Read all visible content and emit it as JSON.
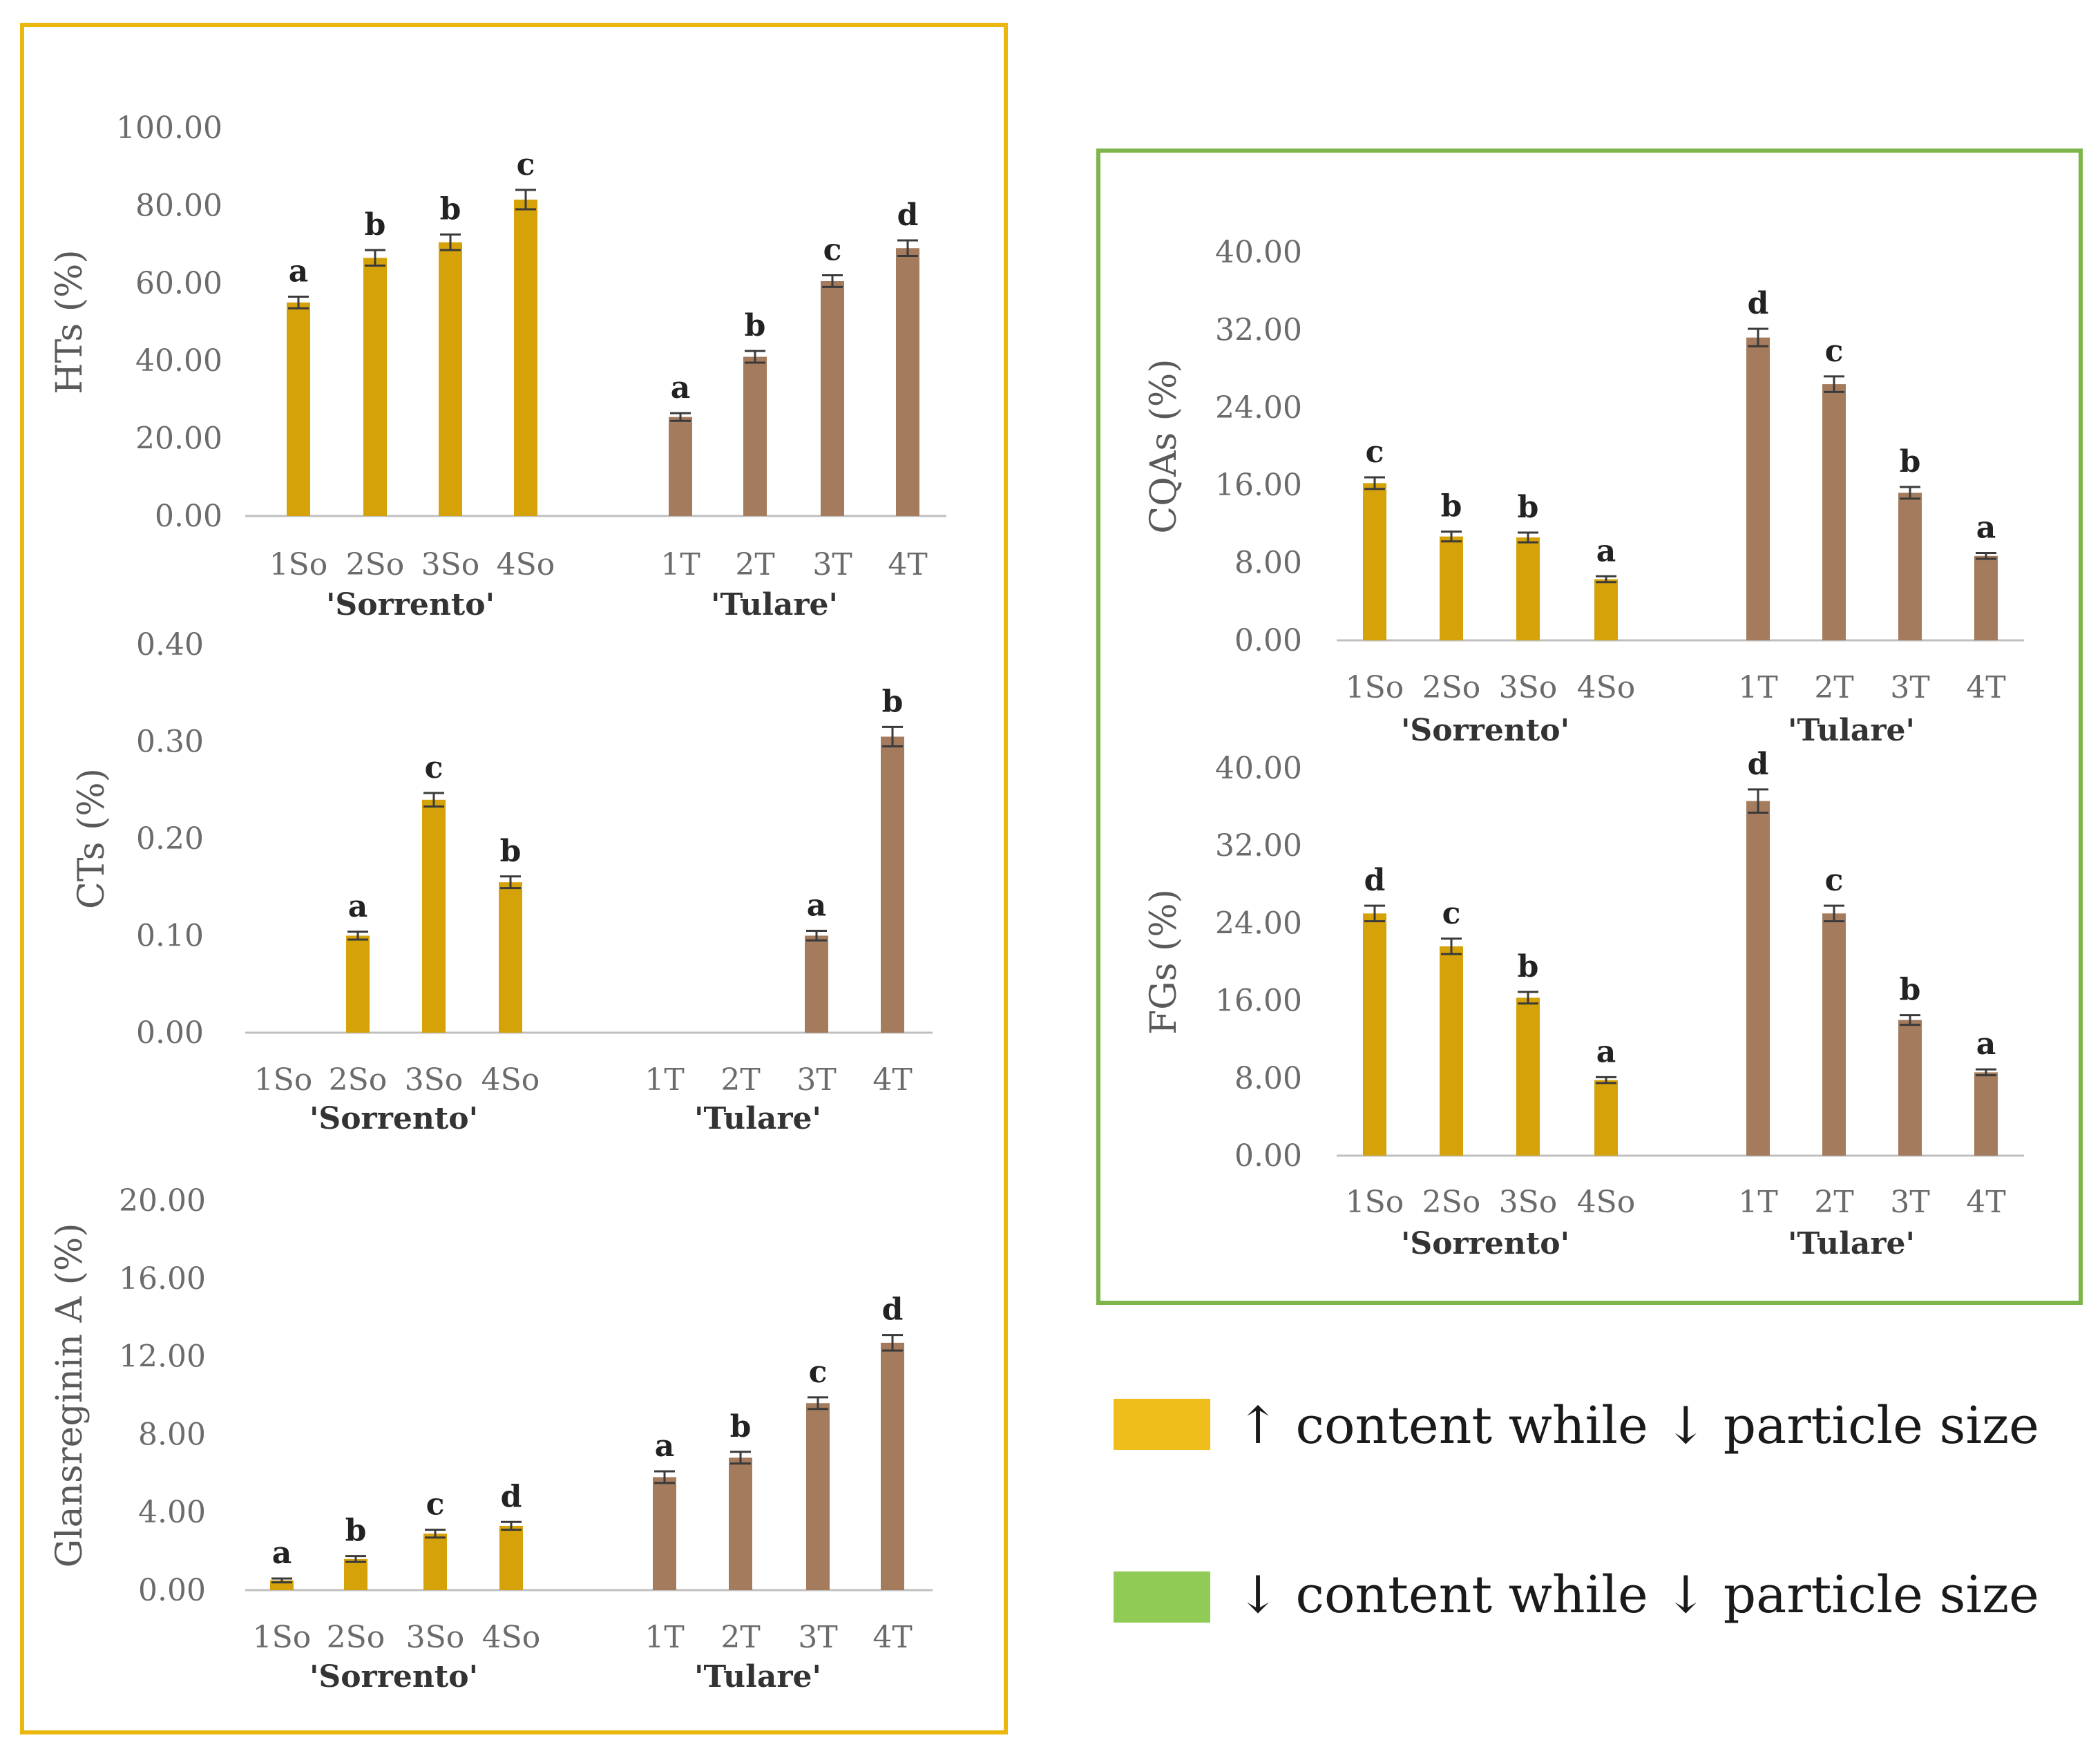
{
  "colors": {
    "sorrento": "#D5A20A",
    "tulare": "#A47B5C",
    "errbar": "#3a3a3a",
    "axis": "#bfbfbf",
    "frame_increase": "#E9B70E",
    "frame_decrease": "#7DB54A",
    "legend_increase": "#F0BE1A",
    "legend_decrease": "#8FCB55"
  },
  "legend": {
    "increase": "↑ content while ↓ particle size",
    "decrease": "↓ content while ↓ particle size"
  },
  "chart_data": [
    {
      "id": "hts",
      "type": "bar",
      "frame": "increase",
      "ylabel": "HTs (%)",
      "yticks": [
        "0.00",
        "20.00",
        "40.00",
        "60.00",
        "80.00",
        "100.00"
      ],
      "ylim": [
        0,
        100
      ],
      "groups": [
        "'Sorrento'",
        "'Tulare'"
      ],
      "categories": [
        "1So",
        "2So",
        "3So",
        "4So",
        "1T",
        "2T",
        "3T",
        "4T"
      ],
      "values": [
        55,
        66.5,
        70.5,
        81.5,
        25.5,
        41,
        60.5,
        69
      ],
      "errors": [
        1.5,
        2,
        2,
        2.5,
        1,
        1.5,
        1.5,
        2
      ],
      "letters": [
        "a",
        "b",
        "b",
        "c",
        "a",
        "b",
        "c",
        "d"
      ]
    },
    {
      "id": "cts",
      "type": "bar",
      "frame": "increase",
      "ylabel": "CTs (%)",
      "yticks": [
        "0.00",
        "0.10",
        "0.20",
        "0.30",
        "0.40"
      ],
      "ylim": [
        0,
        0.4
      ],
      "groups": [
        "'Sorrento'",
        "'Tulare'"
      ],
      "categories": [
        "1So",
        "2So",
        "3So",
        "4So",
        "1T",
        "2T",
        "3T",
        "4T"
      ],
      "values": [
        0,
        0.1,
        0.24,
        0.155,
        0,
        0,
        0.1,
        0.305
      ],
      "errors": [
        0,
        0.004,
        0.007,
        0.006,
        0,
        0,
        0.005,
        0.01
      ],
      "letters": [
        "",
        "a",
        "c",
        "b",
        "",
        "",
        "a",
        "b"
      ]
    },
    {
      "id": "glans",
      "type": "bar",
      "frame": "increase",
      "ylabel": "Glansreginin A (%)",
      "yticks": [
        "0.00",
        "4.00",
        "8.00",
        "12.00",
        "16.00",
        "20.00"
      ],
      "ylim": [
        0,
        20
      ],
      "groups": [
        "'Sorrento'",
        "'Tulare'"
      ],
      "categories": [
        "1So",
        "2So",
        "3So",
        "4So",
        "1T",
        "2T",
        "3T",
        "4T"
      ],
      "values": [
        0.5,
        1.6,
        2.9,
        3.3,
        5.8,
        6.8,
        9.6,
        12.7
      ],
      "errors": [
        0.1,
        0.15,
        0.2,
        0.2,
        0.3,
        0.3,
        0.3,
        0.4
      ],
      "letters": [
        "a",
        "b",
        "c",
        "d",
        "a",
        "b",
        "c",
        "d"
      ]
    },
    {
      "id": "cqas",
      "type": "bar",
      "frame": "decrease",
      "ylabel": "CQAs (%)",
      "yticks": [
        "0.00",
        "8.00",
        "16.00",
        "24.00",
        "32.00",
        "40.00"
      ],
      "ylim": [
        0,
        40
      ],
      "groups": [
        "'Sorrento'",
        "'Tulare'"
      ],
      "categories": [
        "1So",
        "2So",
        "3So",
        "4So",
        "1T",
        "2T",
        "3T",
        "4T"
      ],
      "values": [
        16.2,
        10.7,
        10.6,
        6.3,
        31.2,
        26.4,
        15.2,
        8.7
      ],
      "errors": [
        0.6,
        0.5,
        0.5,
        0.3,
        0.9,
        0.8,
        0.6,
        0.3
      ],
      "letters": [
        "c",
        "b",
        "b",
        "a",
        "d",
        "c",
        "b",
        "a"
      ]
    },
    {
      "id": "fgs",
      "type": "bar",
      "frame": "decrease",
      "ylabel": "FGs (%)",
      "yticks": [
        "0.00",
        "8.00",
        "16.00",
        "24.00",
        "32.00",
        "40.00"
      ],
      "ylim": [
        0,
        40
      ],
      "groups": [
        "'Sorrento'",
        "'Tulare'"
      ],
      "categories": [
        "1So",
        "2So",
        "3So",
        "4So",
        "1T",
        "2T",
        "3T",
        "4T"
      ],
      "values": [
        25,
        21.6,
        16.3,
        7.8,
        36.6,
        25,
        14,
        8.6
      ],
      "errors": [
        0.8,
        0.8,
        0.6,
        0.3,
        1.2,
        0.8,
        0.5,
        0.3
      ],
      "letters": [
        "d",
        "c",
        "b",
        "a",
        "d",
        "c",
        "b",
        "a"
      ]
    }
  ]
}
